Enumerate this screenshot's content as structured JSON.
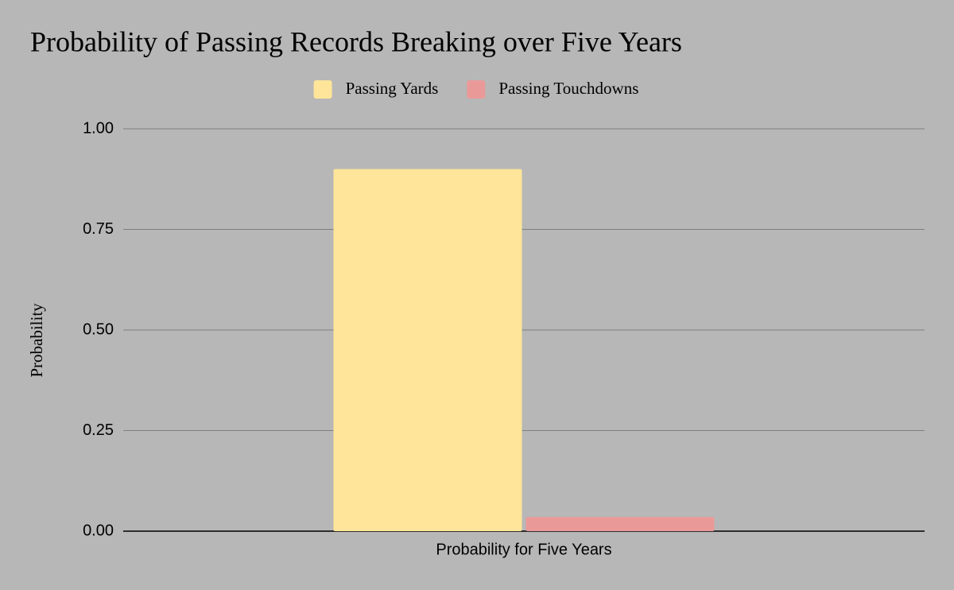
{
  "chart_data": {
    "type": "bar",
    "title": "Probability of Passing Records Breaking over Five Years",
    "categories": [
      "Probability for Five Years"
    ],
    "series": [
      {
        "name": "Passing Yards",
        "color": "#ffe599",
        "values": [
          0.9
        ]
      },
      {
        "name": "Passing Touchdowns",
        "color": "#ea9999",
        "values": [
          0.035
        ]
      }
    ],
    "y_label": "Probability",
    "ylim": [
      0,
      1
    ],
    "yticks": [
      {
        "value": 0,
        "label": "0.00"
      },
      {
        "value": 0.25,
        "label": "0.25"
      },
      {
        "value": 0.5,
        "label": "0.50"
      },
      {
        "value": 0.75,
        "label": "0.75"
      },
      {
        "value": 1,
        "label": "1.00"
      }
    ],
    "grid": true,
    "legend": "top"
  }
}
